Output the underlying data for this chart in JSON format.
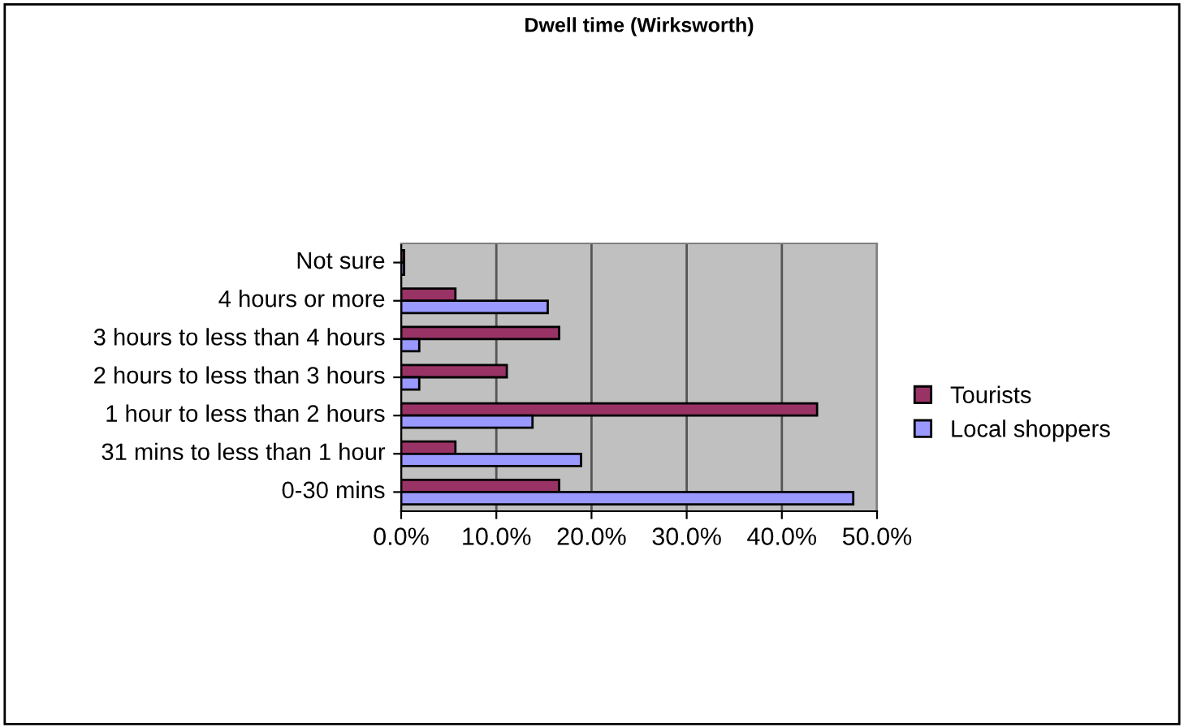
{
  "chart_data": {
    "type": "bar",
    "orientation": "horizontal",
    "title": "Dwell time (Wirksworth)",
    "categories": [
      "Not sure",
      "4 hours or more",
      "3 hours to less than 4 hours",
      "2 hours to less than 3 hours",
      "1 hour to less than 2 hours",
      "31 mins to less than 1 hour",
      "0-30 mins"
    ],
    "series": [
      {
        "name": "Tourists",
        "color": "#993366",
        "values": [
          0.3,
          5.7,
          16.6,
          11.1,
          43.7,
          5.7,
          16.6
        ]
      },
      {
        "name": "Local shoppers",
        "color": "#9999ff",
        "values": [
          0.3,
          15.4,
          1.9,
          1.9,
          13.8,
          18.9,
          47.5
        ]
      }
    ],
    "xlim": [
      0,
      50
    ],
    "xticks": [
      {
        "value": 0,
        "label": "0.0%"
      },
      {
        "value": 10,
        "label": "10.0%"
      },
      {
        "value": 20,
        "label": "20.0%"
      },
      {
        "value": 30,
        "label": "30.0%"
      },
      {
        "value": 40,
        "label": "40.0%"
      },
      {
        "value": 50,
        "label": "50.0%"
      }
    ],
    "grid": "x",
    "legend": "right"
  }
}
